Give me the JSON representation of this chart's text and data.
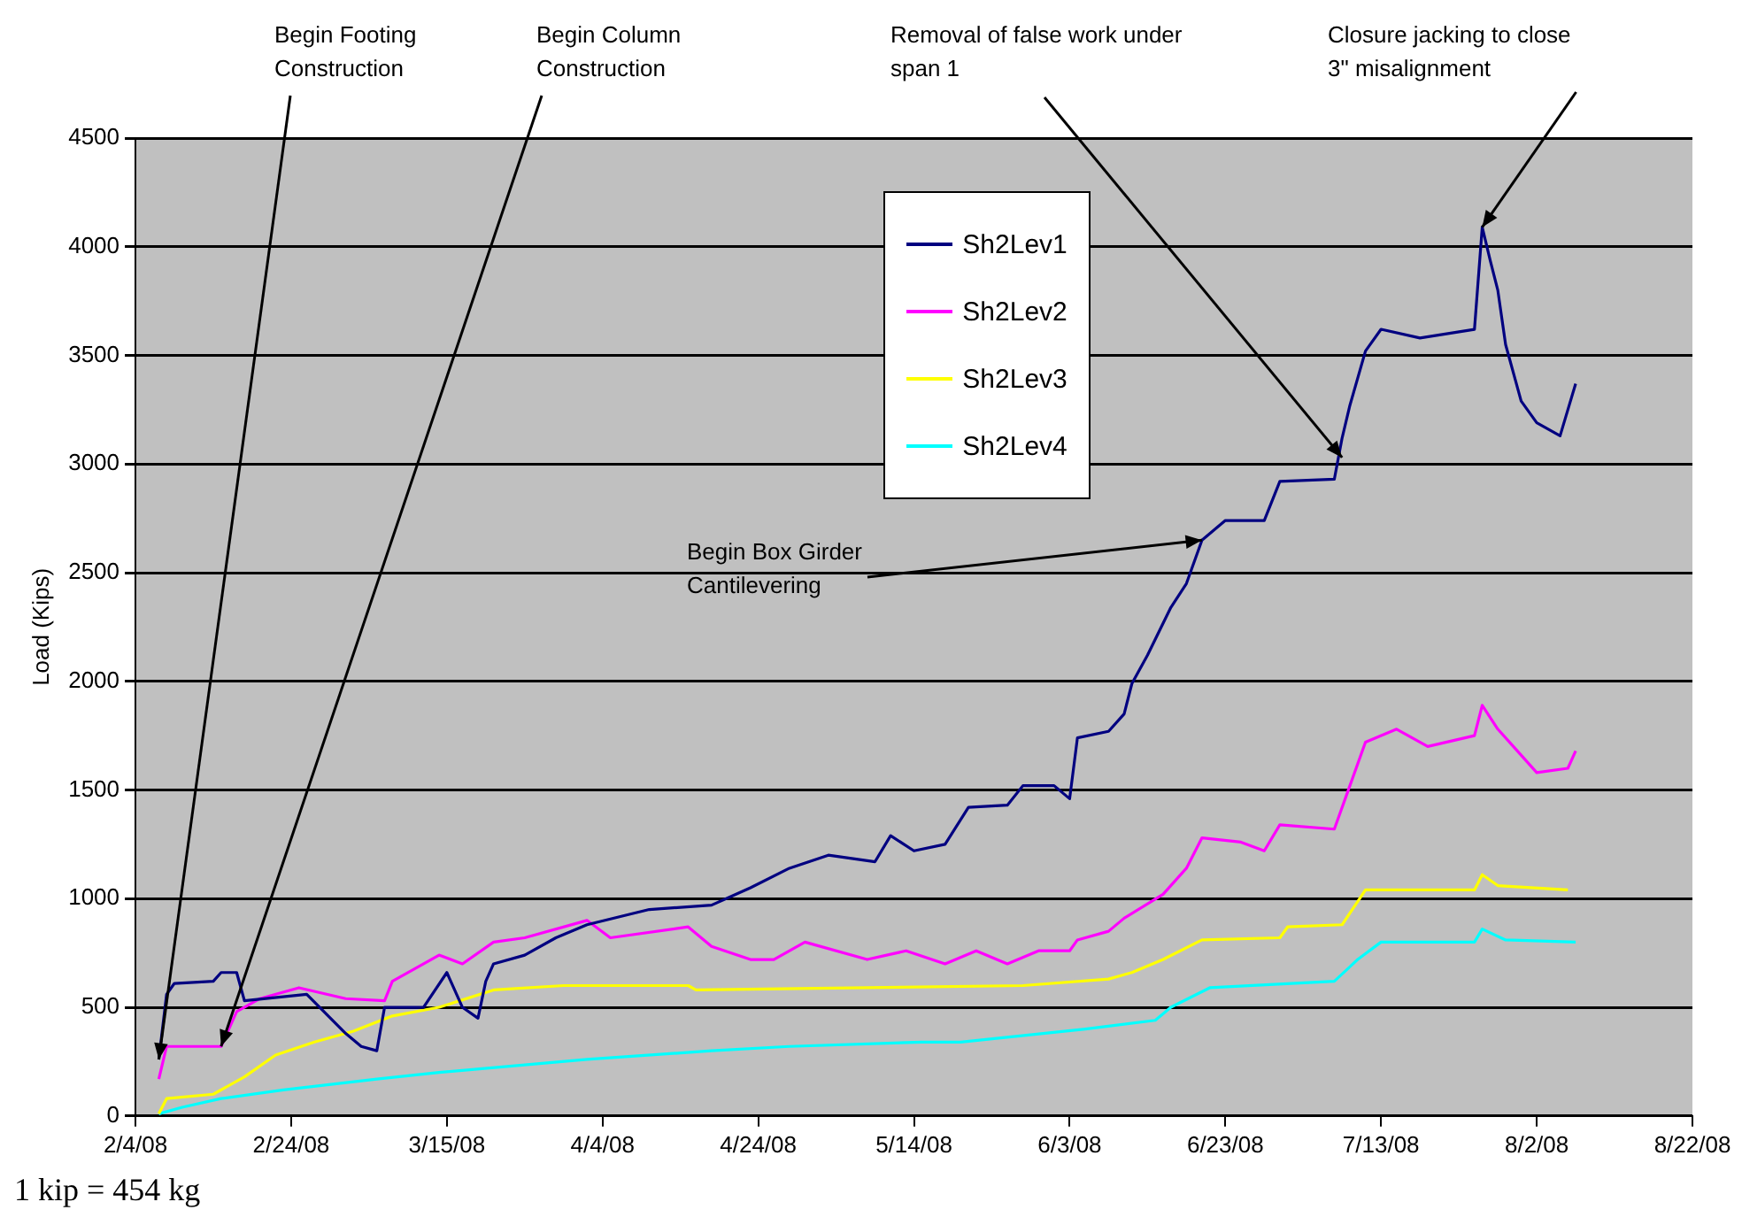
{
  "chart_data": {
    "type": "line",
    "ylabel": "Load (Kips)",
    "grid": "y",
    "legend": "top",
    "xlim": [
      "2008-02-04",
      "2008-08-22"
    ],
    "xticks": [
      {
        "value": "2008-02-04",
        "label": "2/4/08"
      },
      {
        "value": "2008-02-24",
        "label": "2/24/08"
      },
      {
        "value": "2008-03-15",
        "label": "3/15/08"
      },
      {
        "value": "2008-04-04",
        "label": "4/4/08"
      },
      {
        "value": "2008-04-24",
        "label": "4/24/08"
      },
      {
        "value": "2008-05-14",
        "label": "5/14/08"
      },
      {
        "value": "2008-06-03",
        "label": "6/3/08"
      },
      {
        "value": "2008-06-23",
        "label": "6/23/08"
      },
      {
        "value": "2008-07-13",
        "label": "7/13/08"
      },
      {
        "value": "2008-08-02",
        "label": "8/2/08"
      },
      {
        "value": "2008-08-22",
        "label": "8/22/08"
      }
    ],
    "ylim": [
      0,
      4500
    ],
    "yticks": [
      0,
      500,
      1000,
      1500,
      2000,
      2500,
      3000,
      3500,
      4000,
      4500
    ],
    "series": [
      {
        "name": "Sh2Lev1",
        "color": "#000080",
        "x": [
          "2008-02-07",
          "2008-02-08",
          "2008-02-09",
          "2008-02-14",
          "2008-02-15",
          "2008-02-17",
          "2008-02-18",
          "2008-02-26",
          "2008-03-02",
          "2008-03-04",
          "2008-03-06",
          "2008-03-07",
          "2008-03-12",
          "2008-03-15",
          "2008-03-17",
          "2008-03-19",
          "2008-03-20",
          "2008-03-21",
          "2008-03-25",
          "2008-03-29",
          "2008-04-02",
          "2008-04-10",
          "2008-04-18",
          "2008-04-23",
          "2008-04-28",
          "2008-05-03",
          "2008-05-09",
          "2008-05-11",
          "2008-05-14",
          "2008-05-18",
          "2008-05-21",
          "2008-05-26",
          "2008-05-28",
          "2008-06-01",
          "2008-06-03",
          "2008-06-04",
          "2008-06-08",
          "2008-06-10",
          "2008-06-11",
          "2008-06-13",
          "2008-06-16",
          "2008-06-18",
          "2008-06-20",
          "2008-06-23",
          "2008-06-28",
          "2008-06-30",
          "2008-07-07",
          "2008-07-08",
          "2008-07-09",
          "2008-07-11",
          "2008-07-13",
          "2008-07-18",
          "2008-07-25",
          "2008-07-26",
          "2008-07-27",
          "2008-07-28",
          "2008-07-29",
          "2008-07-31",
          "2008-08-02",
          "2008-08-05",
          "2008-08-07"
        ],
        "values": [
          260,
          560,
          610,
          620,
          660,
          660,
          530,
          560,
          380,
          320,
          300,
          500,
          500,
          660,
          500,
          450,
          620,
          700,
          740,
          820,
          880,
          950,
          970,
          1050,
          1140,
          1200,
          1170,
          1290,
          1220,
          1250,
          1420,
          1430,
          1520,
          1520,
          1460,
          1740,
          1770,
          1850,
          1990,
          2120,
          2340,
          2450,
          2650,
          2740,
          2740,
          2920,
          2930,
          3120,
          3270,
          3520,
          3620,
          3580,
          3620,
          4090,
          3940,
          3800,
          3550,
          3290,
          3190,
          3130,
          3370
        ]
      },
      {
        "name": "Sh2Lev2",
        "color": "#ff00ff",
        "x": [
          "2008-02-07",
          "2008-02-08",
          "2008-02-15",
          "2008-02-17",
          "2008-02-20",
          "2008-02-25",
          "2008-03-02",
          "2008-03-07",
          "2008-03-08",
          "2008-03-14",
          "2008-03-17",
          "2008-03-21",
          "2008-03-25",
          "2008-04-02",
          "2008-04-05",
          "2008-04-15",
          "2008-04-18",
          "2008-04-23",
          "2008-04-26",
          "2008-04-30",
          "2008-05-08",
          "2008-05-13",
          "2008-05-18",
          "2008-05-22",
          "2008-05-26",
          "2008-05-30",
          "2008-06-03",
          "2008-06-04",
          "2008-06-08",
          "2008-06-10",
          "2008-06-15",
          "2008-06-18",
          "2008-06-20",
          "2008-06-25",
          "2008-06-28",
          "2008-06-30",
          "2008-07-07",
          "2008-07-09",
          "2008-07-11",
          "2008-07-15",
          "2008-07-19",
          "2008-07-25",
          "2008-07-26",
          "2008-07-28",
          "2008-07-30",
          "2008-08-02",
          "2008-08-06",
          "2008-08-07"
        ],
        "values": [
          170,
          320,
          320,
          480,
          540,
          590,
          540,
          530,
          620,
          740,
          700,
          800,
          820,
          900,
          820,
          870,
          780,
          720,
          720,
          800,
          720,
          760,
          700,
          760,
          700,
          760,
          760,
          810,
          850,
          910,
          1020,
          1140,
          1280,
          1260,
          1220,
          1340,
          1320,
          1520,
          1720,
          1780,
          1700,
          1750,
          1890,
          1780,
          1700,
          1580,
          1600,
          1680
        ]
      },
      {
        "name": "Sh2Lev3",
        "color": "#ffff00",
        "x": [
          "2008-02-07",
          "2008-02-08",
          "2008-02-14",
          "2008-02-18",
          "2008-02-22",
          "2008-02-27",
          "2008-03-03",
          "2008-03-08",
          "2008-03-14",
          "2008-03-21",
          "2008-03-30",
          "2008-04-15",
          "2008-04-16",
          "2008-05-28",
          "2008-06-08",
          "2008-06-11",
          "2008-06-15",
          "2008-06-20",
          "2008-06-30",
          "2008-07-01",
          "2008-07-08",
          "2008-07-11",
          "2008-07-25",
          "2008-07-26",
          "2008-07-28",
          "2008-08-06"
        ],
        "values": [
          10,
          80,
          100,
          180,
          280,
          340,
          390,
          460,
          500,
          580,
          600,
          600,
          580,
          600,
          630,
          660,
          720,
          810,
          820,
          870,
          880,
          1040,
          1040,
          1110,
          1060,
          1040
        ]
      },
      {
        "name": "Sh2Lev4",
        "color": "#00ffff",
        "x": [
          "2008-02-07",
          "2008-02-10",
          "2008-02-15",
          "2008-02-23",
          "2008-03-06",
          "2008-03-14",
          "2008-04-02",
          "2008-04-18",
          "2008-04-28",
          "2008-05-15",
          "2008-05-20",
          "2008-06-05",
          "2008-06-14",
          "2008-06-16",
          "2008-06-21",
          "2008-07-07",
          "2008-07-10",
          "2008-07-13",
          "2008-07-25",
          "2008-07-26",
          "2008-07-29",
          "2008-08-07"
        ],
        "values": [
          10,
          40,
          80,
          120,
          170,
          200,
          260,
          300,
          320,
          340,
          340,
          400,
          440,
          500,
          590,
          620,
          720,
          800,
          800,
          860,
          810,
          800
        ]
      }
    ],
    "annotations": [
      {
        "text": "Begin Footing Construction",
        "x": "2008-02-07",
        "y": 260
      },
      {
        "text": "Begin Column Construction",
        "x": "2008-02-15",
        "y": 320
      },
      {
        "text": "Removal of false work under span 1",
        "x": "2008-07-08",
        "y": 3030
      },
      {
        "text": "Closure jacking to close 3\" misalignment",
        "x": "2008-07-26",
        "y": 4090
      },
      {
        "text": "Begin Box Girder Cantilevering",
        "x": "2008-06-20",
        "y": 2650
      },
      "1 kip = 454 kg"
    ]
  }
}
